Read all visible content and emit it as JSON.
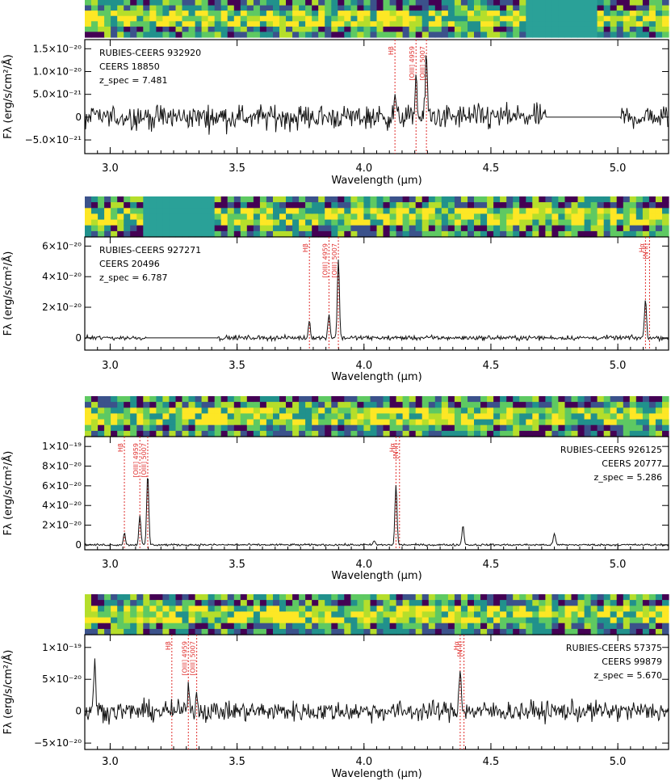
{
  "colors": {
    "spectrum": "#111111",
    "line_marker": "#e0302e",
    "masked": "#2aa198"
  },
  "chart_data": [
    {
      "type": "line",
      "xlabel": "Wavelength (μm)",
      "ylabel": "Fλ (erg/s/cm²/Å)",
      "x_ticks": [
        "3.0",
        "3.5",
        "4.0",
        "4.5",
        "5.0"
      ],
      "y_ticks": [
        "1.5×10⁻²⁰",
        "1.0×10⁻²⁰",
        "5.0×10⁻²¹",
        "0",
        "−5.0×10⁻²¹"
      ],
      "xlim": [
        2.9,
        5.2
      ],
      "ylim": [
        -8e-21,
        1.7e-20
      ],
      "info": [
        "RUBIES-CEERS 932920",
        "CEERS 18850",
        "z_spec = 7.481"
      ],
      "info_position": "top-left",
      "gaps_um": [
        [
          4.72,
          5.01
        ]
      ],
      "lines": [
        {
          "label": "Hβ",
          "x": 4.122
        },
        {
          "label": "[OIII] 4959",
          "x": 4.205
        },
        {
          "label": "[OIII] 5007",
          "x": 4.246
        }
      ],
      "peaks": [
        {
          "x": 4.122,
          "y": 4e-21
        },
        {
          "x": 4.205,
          "y": 9e-21
        },
        {
          "x": 4.246,
          "y": 1.3e-20
        }
      ],
      "noise": 2.5e-21,
      "twod_masked_um": [
        [
          4.65,
          4.92
        ]
      ]
    },
    {
      "type": "line",
      "xlabel": "Wavelength (μm)",
      "ylabel": "Fλ (erg/s/cm²/Å)",
      "x_ticks": [
        "3.0",
        "3.5",
        "4.0",
        "4.5",
        "5.0"
      ],
      "y_ticks": [
        "6×10⁻²⁰",
        "4×10⁻²⁰",
        "2×10⁻²⁰",
        "0"
      ],
      "xlim": [
        2.9,
        5.2
      ],
      "ylim": [
        -8e-21,
        6.6e-20
      ],
      "info": [
        "RUBIES-CEERS 927271",
        "CEERS 20496",
        "z_spec = 6.787"
      ],
      "info_position": "top-left",
      "gaps_um": [
        [
          3.14,
          3.42
        ]
      ],
      "lines": [
        {
          "label": "Hβ",
          "x": 3.785
        },
        {
          "label": "[OIII] 4959",
          "x": 3.862
        },
        {
          "label": "[OIII] 5007",
          "x": 3.899
        },
        {
          "label": "Hα",
          "x": 5.109
        },
        {
          "label": "[N II]",
          "x": 5.125
        }
      ],
      "peaks": [
        {
          "x": 3.785,
          "y": 1.1e-20
        },
        {
          "x": 3.862,
          "y": 1.6e-20
        },
        {
          "x": 3.899,
          "y": 5.2e-20
        },
        {
          "x": 5.109,
          "y": 2.5e-20
        }
      ],
      "noise": 1.4e-21,
      "twod_masked_um": [
        [
          3.14,
          3.42
        ]
      ]
    },
    {
      "type": "line",
      "xlabel": "Wavelength (μm)",
      "ylabel": "Fλ (erg/s/cm²/Å)",
      "x_ticks": [
        "3.0",
        "3.5",
        "4.0",
        "4.5",
        "5.0"
      ],
      "y_ticks": [
        "1×10⁻¹⁹",
        "8×10⁻²⁰",
        "6×10⁻²⁰",
        "4×10⁻²⁰",
        "2×10⁻²⁰",
        "0"
      ],
      "xlim": [
        2.9,
        5.2
      ],
      "ylim": [
        -5e-21,
        1.1e-19
      ],
      "info": [
        "RUBIES-CEERS 926125",
        "CEERS 20777",
        "z_spec = 5.286"
      ],
      "info_position": "top-right",
      "gaps_um": [],
      "lines": [
        {
          "label": "Hβ",
          "x": 3.056
        },
        {
          "label": "[OIII] 4959",
          "x": 3.117
        },
        {
          "label": "[OIII] 5007",
          "x": 3.148
        },
        {
          "label": "Hα",
          "x": 4.126
        },
        {
          "label": "[N II]",
          "x": 4.14
        }
      ],
      "peaks": [
        {
          "x": 3.056,
          "y": 1.2e-20
        },
        {
          "x": 3.117,
          "y": 3e-20
        },
        {
          "x": 3.148,
          "y": 7.3e-20
        },
        {
          "x": 4.126,
          "y": 6.1e-20
        },
        {
          "x": 4.39,
          "y": 2e-20
        },
        {
          "x": 4.75,
          "y": 1.2e-20
        },
        {
          "x": 4.04,
          "y": 4e-21
        }
      ],
      "noise": 1e-21,
      "twod_masked_um": []
    },
    {
      "type": "line",
      "xlabel": "Wavelength (μm)",
      "ylabel": "Fλ (erg/s/cm²/Å)",
      "x_ticks": [
        "3.0",
        "3.5",
        "4.0",
        "4.5",
        "5.0"
      ],
      "y_ticks": [
        "1×10⁻¹⁹",
        "5×10⁻²⁰",
        "0",
        "−5×10⁻²⁰"
      ],
      "xlim": [
        2.9,
        5.2
      ],
      "ylim": [
        -6e-20,
        1.2e-19
      ],
      "info": [
        "RUBIES-CEERS 57375",
        "CEERS 99879",
        "z_spec = 5.670"
      ],
      "info_position": "top-right",
      "gaps_um": [],
      "lines": [
        {
          "label": "Hβ",
          "x": 3.243
        },
        {
          "label": "[OIII] 4959",
          "x": 3.308
        },
        {
          "label": "[OIII] 5007",
          "x": 3.341
        },
        {
          "label": "Hα",
          "x": 4.379
        },
        {
          "label": "[N II]",
          "x": 4.394
        }
      ],
      "peaks": [
        {
          "x": 3.308,
          "y": 4.5e-20
        },
        {
          "x": 3.341,
          "y": 3e-20
        },
        {
          "x": 4.379,
          "y": 7.5e-20
        },
        {
          "x": 2.94,
          "y": 8e-20
        }
      ],
      "noise": 1.5e-20,
      "twod_masked_um": []
    }
  ]
}
